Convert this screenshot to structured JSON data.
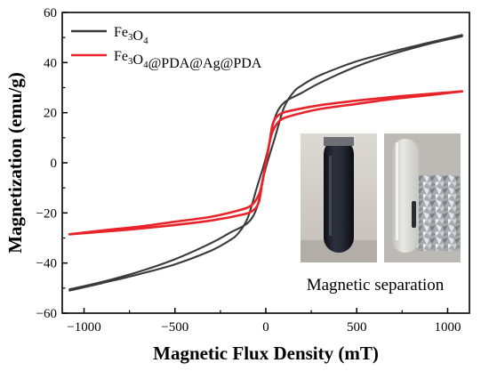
{
  "chart_data": {
    "type": "line",
    "title": "",
    "xlabel": "Magnetic Flux Density (mT)",
    "ylabel": "Magnetization (emu/g)",
    "xlim": [
      -1120,
      1120
    ],
    "ylim": [
      -60,
      60
    ],
    "xticks": [
      -1000,
      -500,
      0,
      500,
      1000
    ],
    "yticks": [
      -60,
      -40,
      -20,
      0,
      20,
      40,
      60
    ],
    "grid": false,
    "legend": "top-left",
    "series": [
      {
        "name": "Fe3O4",
        "legend_parts": [
          {
            "t": "Fe",
            "s": false
          },
          {
            "t": "3",
            "s": true
          },
          {
            "t": "O",
            "s": false
          },
          {
            "t": "4",
            "s": true
          }
        ],
        "color": "#3a3a3a",
        "branches": [
          {
            "x": [
              1080,
              900,
              700,
              500,
              300,
              200,
              150,
              100,
              50,
              20,
              0,
              -20,
              -50,
              -100,
              -200,
              -300,
              -500,
              -700,
              -900,
              -1080
            ],
            "y": [
              51,
              48,
              44.5,
              40.5,
              35,
              31,
              28,
              22,
              10,
              3,
              -2,
              -8,
              -18,
              -24,
              -28,
              -32,
              -38.5,
              -43.5,
              -47.5,
              -50.5
            ]
          },
          {
            "x": [
              -1080,
              -900,
              -700,
              -500,
              -300,
              -200,
              -150,
              -100,
              -50,
              -20,
              0,
              20,
              50,
              100,
              200,
              300,
              500,
              700,
              900,
              1080
            ],
            "y": [
              -51,
              -48,
              -44.5,
              -40.5,
              -35,
              -31,
              -28,
              -22,
              -10,
              -3,
              2,
              8,
              18,
              24,
              28,
              32,
              38.5,
              43.5,
              47.5,
              50.5
            ]
          }
        ]
      },
      {
        "name": "Fe3O4@PDA@Ag@PDA",
        "legend_parts": [
          {
            "t": "Fe",
            "s": false
          },
          {
            "t": "3",
            "s": true
          },
          {
            "t": "O",
            "s": false
          },
          {
            "t": "4",
            "s": true
          },
          {
            "t": "@PDA@Ag@PDA",
            "s": false
          }
        ],
        "color": "#e8242a",
        "branches": [
          {
            "x": [
              1080,
              900,
              700,
              500,
              300,
              150,
              80,
              40,
              20,
              0,
              -20,
              -40,
              -80,
              -150,
              -300,
              -500,
              -700,
              -900,
              -1080
            ],
            "y": [
              28.5,
              27.5,
              26.3,
              24.8,
              23,
              21,
              19.5,
              16,
              8,
              0,
              -8,
              -13,
              -17,
              -19,
              -21.5,
              -23.5,
              -25.5,
              -27,
              -28.5
            ]
          },
          {
            "x": [
              -1080,
              -900,
              -700,
              -500,
              -300,
              -150,
              -80,
              -40,
              -20,
              0,
              20,
              40,
              80,
              150,
              300,
              500,
              700,
              900,
              1080
            ],
            "y": [
              -28.5,
              -27.5,
              -26.3,
              -24.8,
              -23,
              -21,
              -19.5,
              -16,
              -8,
              0,
              8,
              13,
              17,
              19,
              21.5,
              23.5,
              25.5,
              27,
              28.5
            ]
          }
        ]
      }
    ],
    "inset": {
      "caption": "Magnetic separation"
    }
  },
  "colors": {
    "axis": "#000000",
    "inset_bg": "#c9c6c0"
  }
}
